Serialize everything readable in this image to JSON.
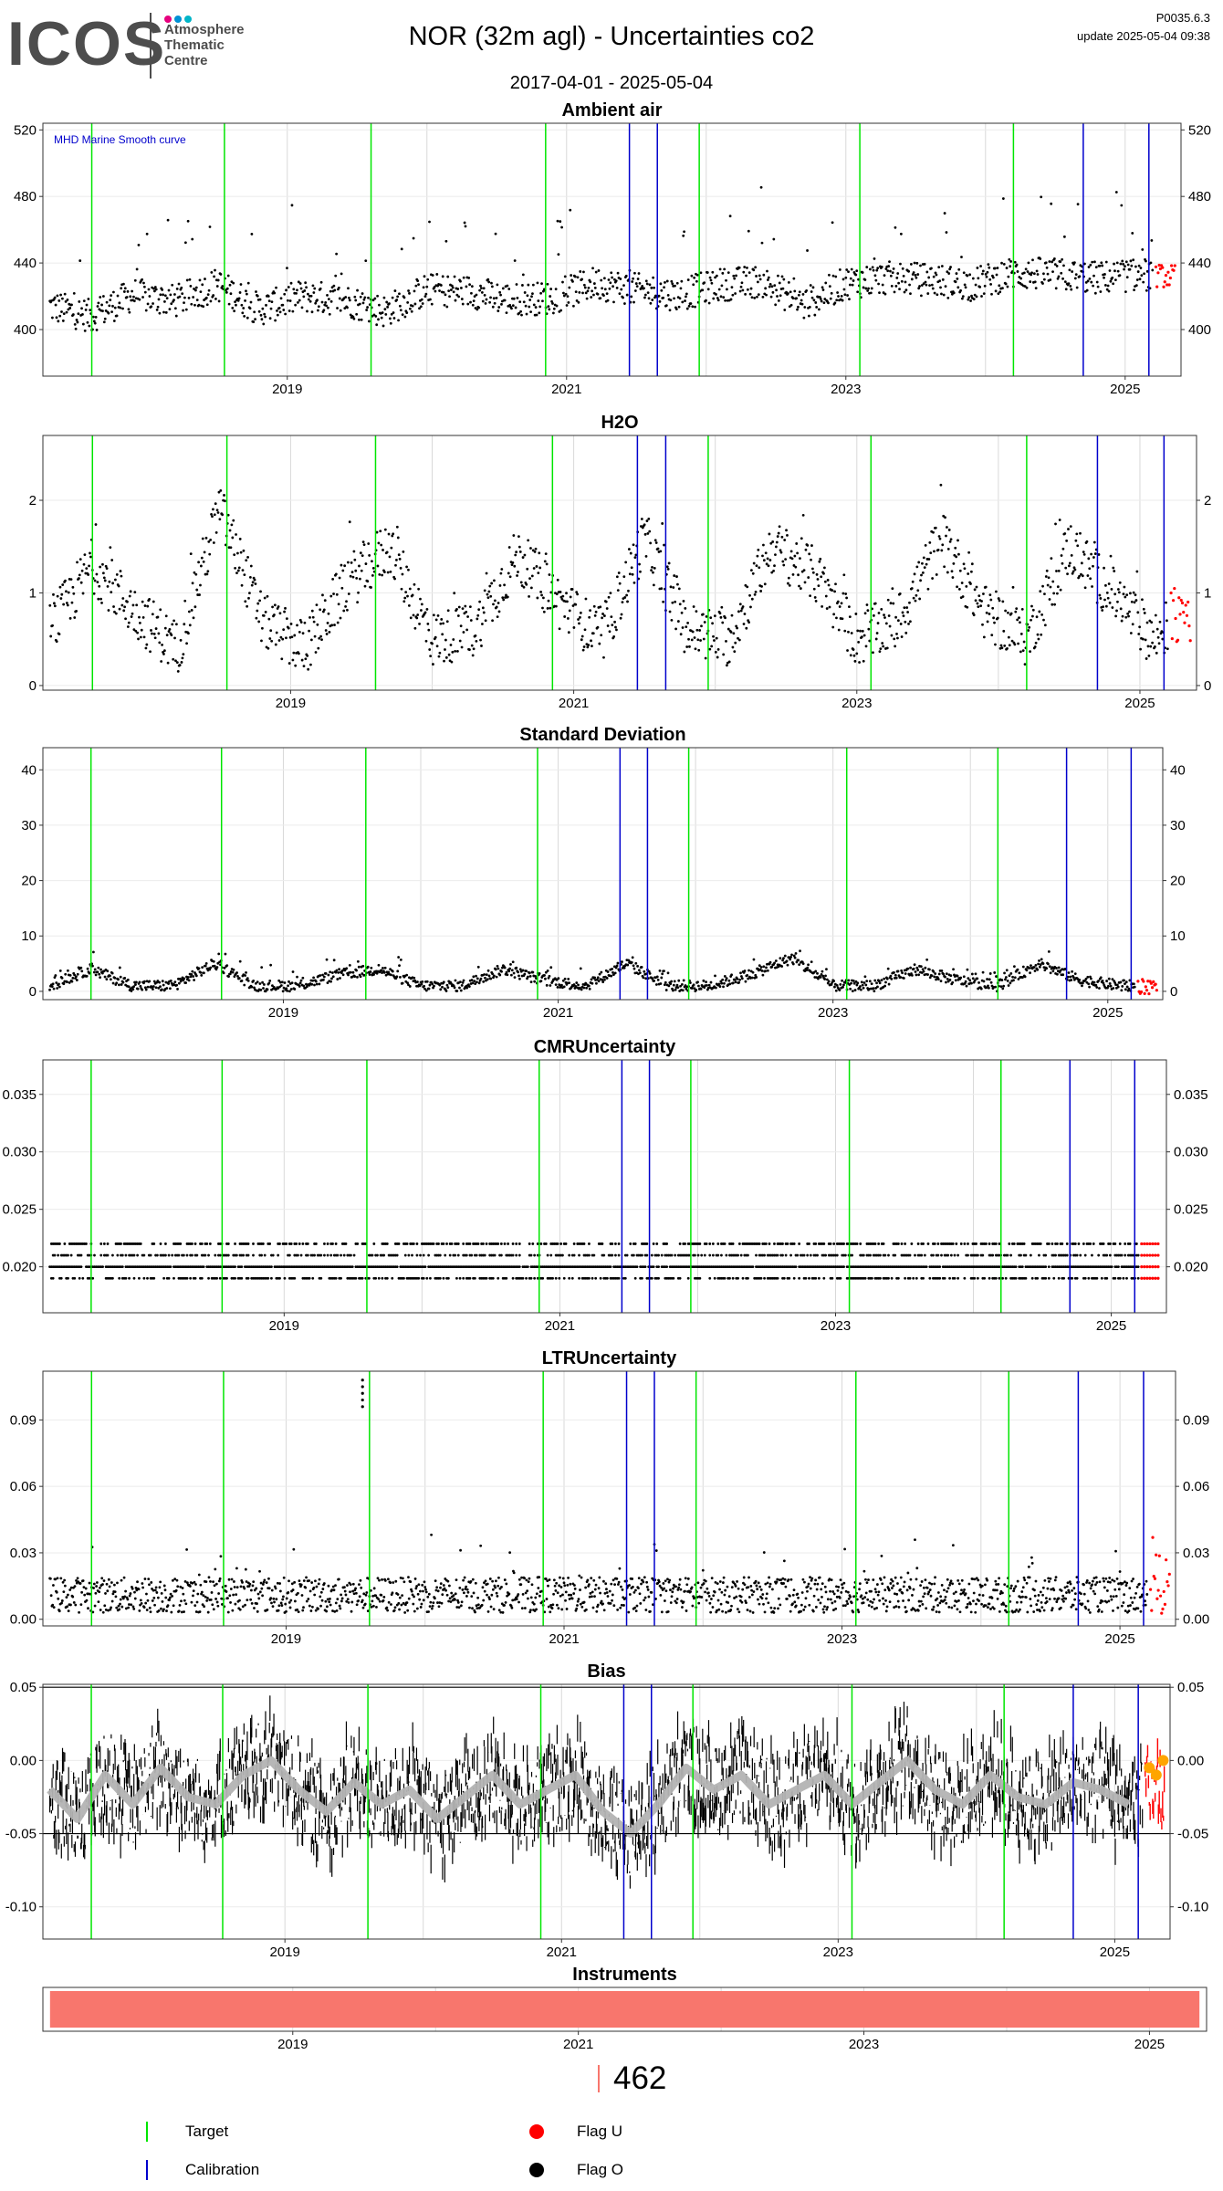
{
  "header": {
    "logo_text": "ICOS",
    "logo_sub": [
      "Atmosphere",
      "Thematic",
      "Centre"
    ],
    "title": "NOR  (32m agl) - Uncertainties co2",
    "date_range": "2017-04-01 - 2025-05-04",
    "code": "P0035.6.3",
    "update": "update  2025-05-04 09:38"
  },
  "colors": {
    "target": "#00e600",
    "calibration": "#0000cc",
    "flag_u": "#ff0000",
    "flag_o": "#000000",
    "smooth_curve": "#b3b3b3",
    "bias_recent": "#ffa500",
    "instrument_bar": "#f8766d"
  },
  "events": {
    "target_dates": [
      2017.6,
      2018.55,
      2019.6,
      2020.85,
      2021.95,
      2023.1,
      2024.2
    ],
    "calibration_dates": [
      2021.45,
      2021.65,
      2024.7,
      2025.17
    ]
  },
  "chart_data": [
    {
      "type": "scatter",
      "title": "Ambient air",
      "annotation": "MHD Marine Smooth curve",
      "xlim": [
        2017.25,
        2025.4
      ],
      "ylim": [
        372,
        524
      ],
      "yticks": [
        400,
        440,
        480,
        520
      ],
      "xticks": [
        2019,
        2021,
        2023,
        2025
      ],
      "series": [
        {
          "x": [
            2017.3,
            2017.6,
            2017.9,
            2018.2,
            2018.5,
            2018.8,
            2019.1,
            2019.4,
            2019.7,
            2020.0,
            2020.3,
            2020.6,
            2020.9,
            2021.2,
            2021.5,
            2021.8,
            2022.1,
            2022.4,
            2022.7,
            2023.0,
            2023.3,
            2023.6,
            2023.9,
            2024.2,
            2024.5,
            2024.8,
            2025.1,
            2025.3
          ],
          "values": [
            414,
            408,
            421,
            417,
            427,
            412,
            420,
            418,
            411,
            424,
            423,
            418,
            419,
            428,
            424,
            421,
            427,
            429,
            415,
            428,
            431,
            430,
            427,
            434,
            433,
            431,
            433,
            432
          ]
        }
      ]
    },
    {
      "type": "scatter",
      "title": "H2O",
      "xlim": [
        2017.25,
        2025.4
      ],
      "ylim": [
        -0.05,
        2.7
      ],
      "yticks": [
        0,
        1,
        2
      ],
      "xticks": [
        2019,
        2021,
        2023,
        2025
      ],
      "series": [
        {
          "x": [
            2017.3,
            2017.6,
            2017.9,
            2018.2,
            2018.5,
            2018.8,
            2019.1,
            2019.4,
            2019.7,
            2020.0,
            2020.3,
            2020.6,
            2020.9,
            2021.2,
            2021.5,
            2021.8,
            2022.1,
            2022.4,
            2022.7,
            2023.0,
            2023.3,
            2023.6,
            2023.9,
            2024.2,
            2024.5,
            2024.8,
            2025.1,
            2025.3
          ],
          "values": [
            0.6,
            1.3,
            0.8,
            0.4,
            1.9,
            0.7,
            0.4,
            1.1,
            1.5,
            0.5,
            0.6,
            1.4,
            0.9,
            0.5,
            1.6,
            0.6,
            0.5,
            1.5,
            1.2,
            0.5,
            0.7,
            1.6,
            0.8,
            0.5,
            1.5,
            1.0,
            0.5,
            0.8
          ]
        }
      ]
    },
    {
      "type": "scatter",
      "title": "Standard Deviation",
      "xlim": [
        2017.25,
        2025.4
      ],
      "ylim": [
        -1.5,
        44
      ],
      "yticks": [
        0,
        10,
        20,
        30,
        40
      ],
      "xticks": [
        2019,
        2021,
        2023,
        2025
      ],
      "series": [
        {
          "x": [
            2017.3,
            2017.6,
            2017.9,
            2018.2,
            2018.5,
            2018.8,
            2019.1,
            2019.4,
            2019.7,
            2020.0,
            2020.3,
            2020.6,
            2020.9,
            2021.2,
            2021.5,
            2021.8,
            2022.1,
            2022.4,
            2022.7,
            2023.0,
            2023.3,
            2023.6,
            2023.9,
            2024.2,
            2024.5,
            2024.8,
            2025.1,
            2025.3
          ],
          "values": [
            1,
            4,
            1,
            1,
            5,
            1,
            1,
            3,
            4,
            1,
            1,
            4,
            2,
            1,
            5,
            1,
            1,
            3,
            6,
            1,
            1,
            4,
            2,
            1,
            5,
            2,
            1,
            1
          ]
        }
      ]
    },
    {
      "type": "scatter",
      "title": "CMRUncertainty",
      "xlim": [
        2017.25,
        2025.4
      ],
      "ylim": [
        0.016,
        0.038
      ],
      "yticks": [
        0.02,
        0.025,
        0.03,
        0.035
      ],
      "ytick_labels": [
        "0.020",
        "0.025",
        "0.030",
        "0.035"
      ],
      "xticks": [
        2019,
        2021,
        2023,
        2025
      ],
      "levels": [
        0.019,
        0.02,
        0.021,
        0.022
      ]
    },
    {
      "type": "scatter",
      "title": "LTRUncertainty",
      "xlim": [
        2017.25,
        2025.4
      ],
      "ylim": [
        -0.003,
        0.112
      ],
      "yticks": [
        0,
        0.03,
        0.06,
        0.09
      ],
      "ytick_labels": [
        "0.00",
        "0.03",
        "0.06",
        "0.09"
      ],
      "xticks": [
        2019,
        2021,
        2023,
        2025
      ]
    },
    {
      "type": "line",
      "title": "Bias",
      "xlim": [
        2017.25,
        2025.4
      ],
      "ylim": [
        -0.122,
        0.052
      ],
      "yticks": [
        -0.1,
        -0.05,
        0,
        0.05
      ],
      "ytick_labels": [
        "-0.10",
        "-0.05",
        "0.00",
        "0.05"
      ],
      "xticks": [
        2019,
        2021,
        2023,
        2025
      ],
      "hlines": [
        0.05,
        -0.05
      ],
      "smooth": {
        "x": [
          2017.3,
          2017.5,
          2017.7,
          2017.9,
          2018.1,
          2018.3,
          2018.5,
          2018.7,
          2018.9,
          2019.1,
          2019.3,
          2019.5,
          2019.7,
          2019.9,
          2020.1,
          2020.3,
          2020.5,
          2020.7,
          2020.9,
          2021.1,
          2021.3,
          2021.5,
          2021.7,
          2021.9,
          2022.1,
          2022.3,
          2022.5,
          2022.7,
          2022.9,
          2023.1,
          2023.3,
          2023.5,
          2023.7,
          2023.9,
          2024.1,
          2024.3,
          2024.5,
          2024.7,
          2024.9,
          2025.1
        ],
        "values": [
          -0.02,
          -0.04,
          -0.01,
          -0.03,
          -0.005,
          -0.025,
          -0.03,
          -0.01,
          0.0,
          -0.02,
          -0.035,
          -0.015,
          -0.03,
          -0.02,
          -0.04,
          -0.025,
          -0.01,
          -0.03,
          -0.02,
          -0.01,
          -0.035,
          -0.05,
          -0.03,
          -0.005,
          -0.02,
          -0.01,
          -0.03,
          -0.02,
          -0.01,
          -0.03,
          -0.015,
          0.0,
          -0.02,
          -0.03,
          -0.01,
          -0.025,
          -0.03,
          -0.015,
          -0.02,
          -0.03
        ]
      },
      "recent": {
        "x": [
          2025.25,
          2025.3,
          2025.35
        ],
        "values": [
          -0.005,
          -0.01,
          0.0
        ]
      }
    },
    {
      "type": "bar",
      "title": "Instruments",
      "xlim": [
        2017.25,
        2025.4
      ],
      "xticks": [
        2019,
        2021,
        2023,
        2025
      ],
      "bar_range": [
        2017.3,
        2025.35
      ]
    }
  ],
  "legend": {
    "count": "462",
    "items": [
      {
        "label": "Target",
        "kind": "line",
        "color": "#00e600"
      },
      {
        "label": "Calibration",
        "kind": "line",
        "color": "#0000cc"
      },
      {
        "label": "Flag U",
        "kind": "dot",
        "color": "#ff0000"
      },
      {
        "label": "Flag O",
        "kind": "dot",
        "color": "#000000"
      }
    ]
  }
}
